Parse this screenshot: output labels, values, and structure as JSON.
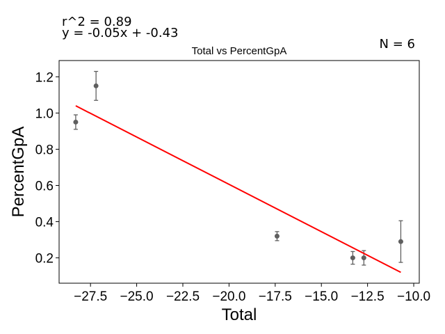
{
  "annotations": {
    "r_squared": "r^2 = 0.89",
    "equation": "y = -0.05x + -0.43",
    "n_label": "N = 6"
  },
  "chart_data": {
    "type": "scatter",
    "title": "Total vs PercentGpA",
    "xlabel": "Total",
    "ylabel": "PercentGpA",
    "xlim": [
      -29.2,
      -9.7
    ],
    "ylim": [
      0.06,
      1.29
    ],
    "xticks": [
      -27.5,
      -25.0,
      -22.5,
      -20.0,
      -17.5,
      -15.0,
      -12.5,
      -10.0
    ],
    "xtick_labels": [
      "−27.5",
      "−25.0",
      "−22.5",
      "−20.0",
      "−17.5",
      "−15.0",
      "−12.5",
      "−10.0"
    ],
    "yticks": [
      0.2,
      0.4,
      0.6,
      0.8,
      1.0,
      1.2
    ],
    "ytick_labels": [
      "0.2",
      "0.4",
      "0.6",
      "0.8",
      "1.0",
      "1.2"
    ],
    "points": [
      {
        "x": -28.3,
        "y": 0.95,
        "err": 0.04
      },
      {
        "x": -27.2,
        "y": 1.15,
        "err": 0.08
      },
      {
        "x": -17.4,
        "y": 0.32,
        "err": 0.025
      },
      {
        "x": -13.3,
        "y": 0.2,
        "err": 0.035
      },
      {
        "x": -12.7,
        "y": 0.2,
        "err": 0.04
      },
      {
        "x": -10.7,
        "y": 0.29,
        "err": 0.115
      }
    ],
    "fit_line": {
      "x": [
        -28.3,
        -10.7
      ],
      "y": [
        1.04,
        0.12
      ]
    },
    "colors": {
      "points": "#5f5f5f",
      "errorbars": "#5f5f5f",
      "fit": "#ff0000",
      "axes": "#000000"
    },
    "grid": false
  }
}
